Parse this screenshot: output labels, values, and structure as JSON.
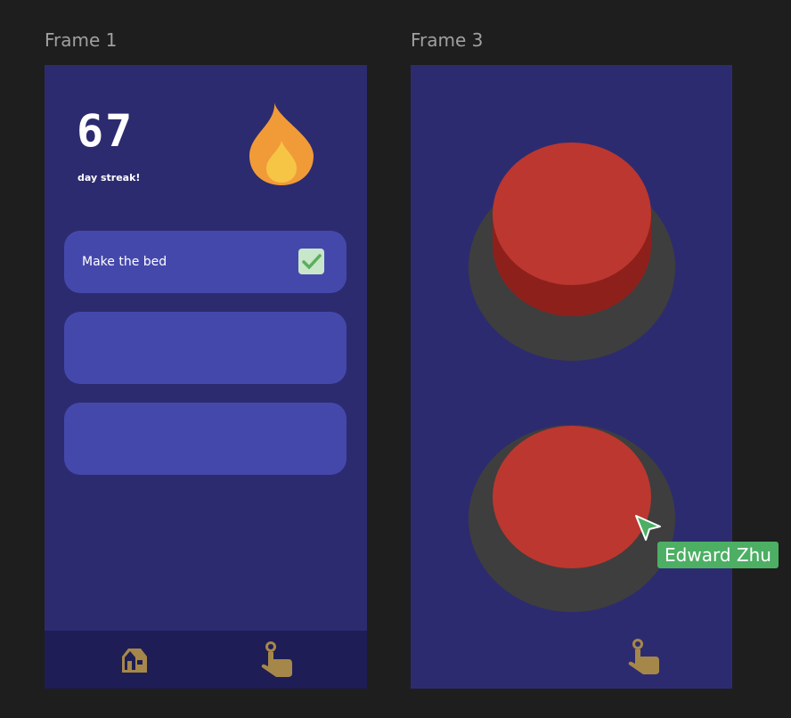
{
  "frames": [
    {
      "label": "Frame 1"
    },
    {
      "label": "Frame 3"
    }
  ],
  "streak": {
    "count": "67",
    "caption": "day streak!",
    "icon": "flame-icon"
  },
  "tasks": [
    {
      "label": "Make the bed",
      "checked": true
    },
    {
      "label": ""
    },
    {
      "label": ""
    }
  ],
  "nav": {
    "items": [
      {
        "icon": "home-icon"
      },
      {
        "icon": "tap-hand-icon"
      }
    ]
  },
  "cursor": {
    "user": "Edward Zhu",
    "color": "#4caf64"
  },
  "colors": {
    "frame_bg": "#2d2b6f",
    "card": "#4548ab",
    "nav_bg": "#1e1d55",
    "button_red": "#bc372f",
    "icon_gold": "#a6874a"
  }
}
